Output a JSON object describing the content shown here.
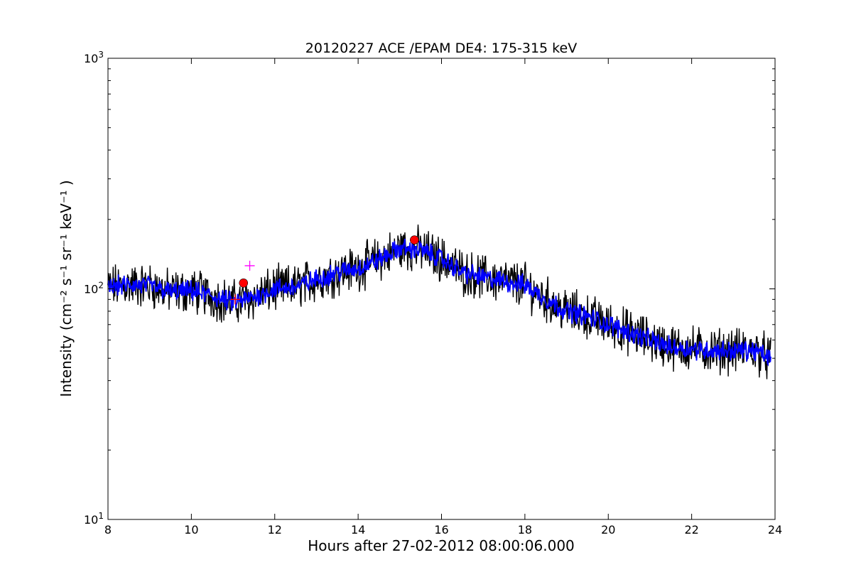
{
  "chart_data": {
    "type": "line",
    "title": "20120227 ACE /EPAM DE4: 175-315 keV",
    "xlabel": "Hours after 27-02-2012 08:00:06.000",
    "ylabel": "Intensity (cm⁻² s⁻¹ sr⁻¹ keV⁻¹ )",
    "xlim": [
      8,
      24
    ],
    "ylim": [
      10,
      1000
    ],
    "yscale": "log",
    "grid": false,
    "x_ticks": [
      8,
      10,
      12,
      14,
      16,
      18,
      20,
      22,
      24
    ],
    "x_tick_labels": [
      "8",
      "10",
      "12",
      "14",
      "16",
      "18",
      "20",
      "22",
      "24"
    ],
    "y_ticks": [
      10,
      100,
      1000
    ],
    "y_tick_labels": [
      "10",
      "10",
      "10"
    ],
    "y_tick_exponents": [
      "1",
      "2",
      "3"
    ],
    "series": [
      {
        "color": "#000000",
        "style": "raw, noisy",
        "x": [
          8.0,
          8.5,
          9.0,
          9.5,
          10.0,
          10.5,
          11.0,
          11.5,
          12.0,
          12.5,
          13.0,
          13.5,
          14.0,
          14.5,
          15.0,
          15.5,
          16.0,
          16.5,
          17.0,
          17.5,
          18.0,
          18.5,
          19.0,
          19.5,
          20.0,
          20.5,
          21.0,
          21.5,
          22.0,
          22.5,
          23.0,
          23.5,
          23.9
        ],
        "values": [
          102,
          104,
          103,
          97,
          98,
          93,
          87,
          92,
          100,
          102,
          110,
          118,
          123,
          134,
          150,
          148,
          135,
          118,
          112,
          108,
          104,
          90,
          80,
          76,
          70,
          65,
          60,
          56,
          55,
          54,
          54,
          54,
          50
        ],
        "noise_amplitude": 0.18
      },
      {
        "color": "#0000ff",
        "style": "smoothed",
        "x": [
          8.0,
          8.5,
          9.0,
          9.5,
          10.0,
          10.5,
          11.0,
          11.5,
          12.0,
          12.5,
          13.0,
          13.5,
          14.0,
          14.5,
          15.0,
          15.5,
          16.0,
          16.5,
          17.0,
          17.5,
          18.0,
          18.5,
          19.0,
          19.5,
          20.0,
          20.5,
          21.0,
          21.5,
          22.0,
          22.5,
          23.0,
          23.5,
          23.9
        ],
        "values": [
          102,
          104,
          103,
          97,
          98,
          93,
          87,
          92,
          100,
          102,
          110,
          118,
          123,
          134,
          150,
          148,
          135,
          118,
          112,
          108,
          104,
          90,
          80,
          76,
          70,
          65,
          60,
          56,
          55,
          54,
          54,
          54,
          50
        ],
        "noise_amplitude": 0.08
      }
    ],
    "markers": [
      {
        "type": "circle",
        "color": "#ff0000",
        "x": 15.35,
        "y": 163
      },
      {
        "type": "circle",
        "color": "#ff0000",
        "x": 11.25,
        "y": 106
      },
      {
        "type": "plus",
        "color": "#ff00ff",
        "x": 11.4,
        "y": 126
      },
      {
        "type": "plus",
        "color": "#ff0000",
        "x": 11.05,
        "y": 90
      }
    ]
  }
}
